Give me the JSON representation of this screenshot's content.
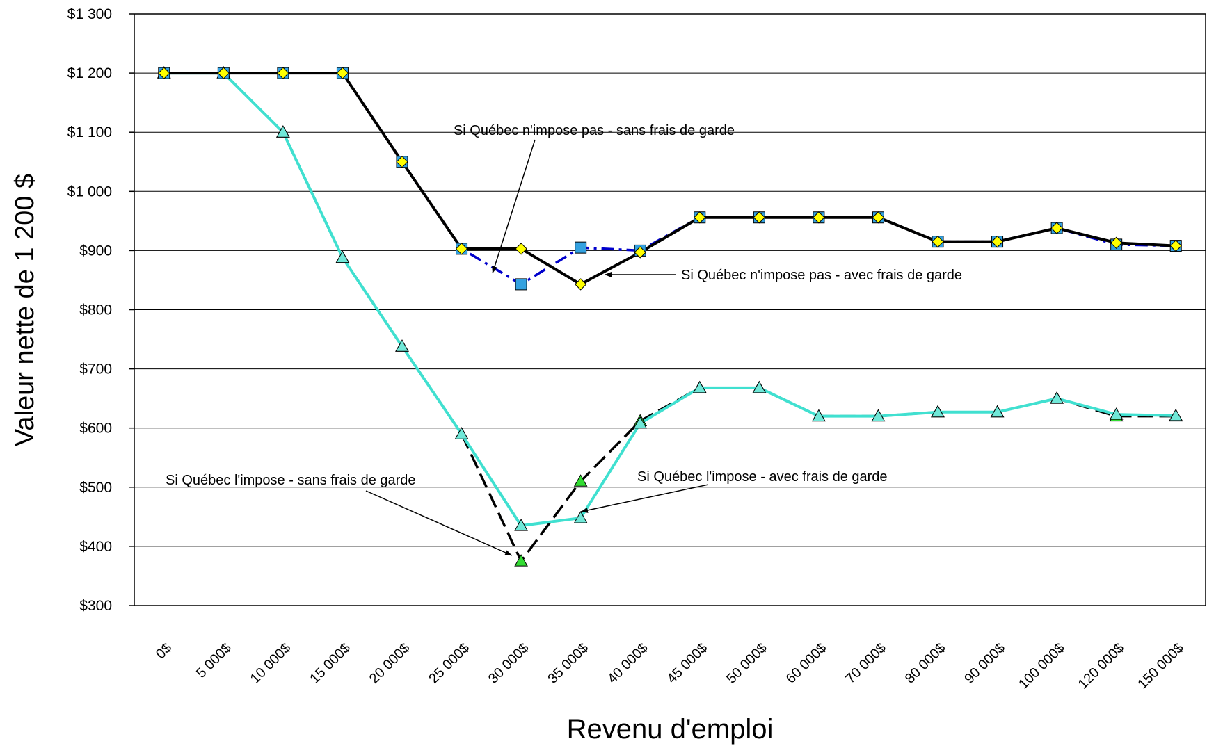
{
  "chart_data": {
    "type": "line",
    "xlabel": "Revenu d'emploi",
    "ylabel": "Valeur nette de 1 200 $",
    "categories": [
      "0$",
      "5 000$",
      "10 000$",
      "15 000$",
      "20 000$",
      "25 000$",
      "30 000$",
      "35 000$",
      "40 000$",
      "45 000$",
      "50 000$",
      "60 000$",
      "70 000$",
      "80 000$",
      "90 000$",
      "100 000$",
      "120 000$",
      "150 000$"
    ],
    "series": [
      {
        "name": "Si Québec n'impose pas - sans frais de garde",
        "color": "#0000cc",
        "marker_color": "#33a1e0",
        "values": [
          1200,
          1200,
          1200,
          1200,
          1050,
          903,
          843,
          905,
          900,
          956,
          956,
          956,
          956,
          915,
          915,
          938,
          910,
          908
        ]
      },
      {
        "name": "Si Québec n'impose pas - avec frais de garde",
        "color": "#000000",
        "marker_color": "#ffff00",
        "values": [
          1200,
          1200,
          1200,
          1200,
          1050,
          903,
          903,
          843,
          897,
          956,
          956,
          956,
          956,
          915,
          915,
          938,
          913,
          908
        ]
      },
      {
        "name": "Si Québec l'impose - sans frais de garde",
        "color": "#000000",
        "marker_color": "#33dd33",
        "values": [
          1200,
          1200,
          1100,
          888,
          738,
          590,
          375,
          510,
          612,
          668,
          668,
          620,
          620,
          627,
          627,
          650,
          620,
          620
        ]
      },
      {
        "name": "Si Québec l'impose  - avec frais de garde",
        "color": "#40e0d0",
        "marker_color": "#70e8d8",
        "values": [
          1200,
          1200,
          1100,
          888,
          738,
          590,
          435,
          448,
          608,
          668,
          668,
          620,
          620,
          627,
          627,
          650,
          623,
          621
        ]
      }
    ],
    "ylim": [
      300,
      1300
    ],
    "yticks": [
      {
        "value": 300,
        "label": "$300"
      },
      {
        "value": 400,
        "label": "$400"
      },
      {
        "value": 500,
        "label": "$500"
      },
      {
        "value": 600,
        "label": "$600"
      },
      {
        "value": 700,
        "label": "$700"
      },
      {
        "value": 800,
        "label": "$800"
      },
      {
        "value": 900,
        "label": "$900"
      },
      {
        "value": 1000,
        "label": "$1 000"
      },
      {
        "value": 1100,
        "label": "$1 100"
      },
      {
        "value": 1200,
        "label": "$1 200"
      },
      {
        "value": 1300,
        "label": "$1 300"
      }
    ],
    "grid": true
  }
}
